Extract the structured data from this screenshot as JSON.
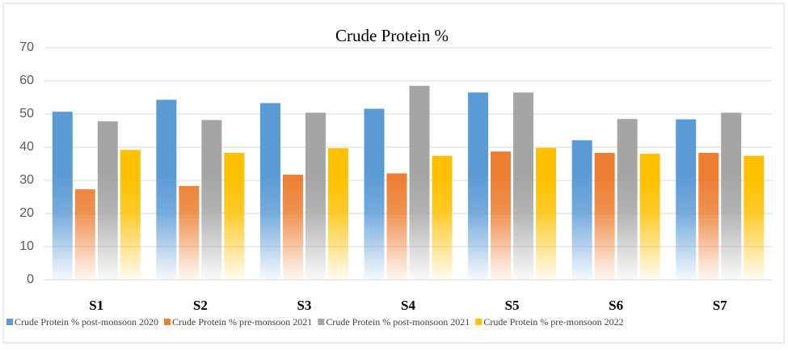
{
  "chart_data": {
    "type": "bar",
    "title": "Crude Protein %",
    "categories": [
      "S1",
      "S2",
      "S3",
      "S4",
      "S5",
      "S6",
      "S7"
    ],
    "series": [
      {
        "name": "Crude Protein % post-monsoon 2020",
        "color": "#5b9bd5",
        "values": [
          50.7,
          54.3,
          53.3,
          51.6,
          56.5,
          42.1,
          48.4
        ]
      },
      {
        "name": "Crude Protein % pre-monsoon 2021",
        "color": "#ed7d31",
        "values": [
          27.3,
          28.3,
          31.7,
          32.1,
          38.7,
          38.3,
          38.3
        ]
      },
      {
        "name": "Crude Protein % post-monsoon 2021",
        "color": "#a5a5a5",
        "values": [
          47.8,
          48.2,
          50.4,
          58.5,
          56.5,
          48.5,
          50.4
        ]
      },
      {
        "name": "Crude Protein % pre-monsoon 2022",
        "color": "#ffc000",
        "values": [
          39.2,
          38.3,
          39.7,
          37.4,
          39.8,
          38.0,
          37.4
        ]
      }
    ],
    "ylim": [
      0,
      70
    ],
    "yticks": [
      0,
      10,
      20,
      30,
      40,
      50,
      60,
      70
    ],
    "grid": true,
    "legend": "bottom"
  }
}
